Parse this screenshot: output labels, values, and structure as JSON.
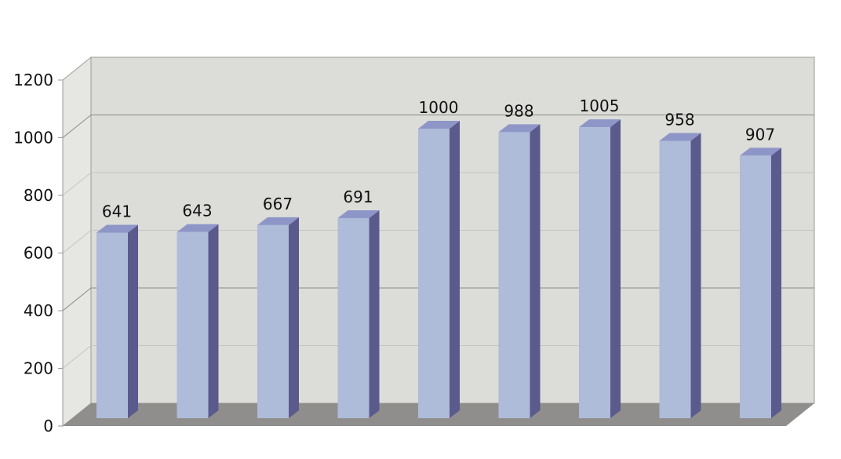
{
  "chart_data": {
    "type": "bar",
    "categories": [
      "",
      "",
      "",
      "",
      "",
      "",
      "",
      "",
      ""
    ],
    "values": [
      641,
      643,
      667,
      691,
      1000,
      988,
      1005,
      958,
      907
    ],
    "ylim": [
      0,
      1200
    ],
    "yticks": [
      "0",
      "200",
      "400",
      "600",
      "800",
      "1000",
      "1200"
    ],
    "data_labels": [
      "641",
      "643",
      "667",
      "691",
      "1000",
      "988",
      "1005",
      "958",
      "907"
    ],
    "grid": true,
    "legend": "none",
    "three_d": true,
    "colors": {
      "bar_front": "#aebbd9",
      "bar_side": "#5a5a8c",
      "bar_top": "#8e96c8",
      "back_wall": "#dcddd8",
      "side_wall": "#e6e6e2",
      "floor": "#908e8c",
      "gridline": "#c4c4c0",
      "gridline_major": "#8a8a86"
    }
  }
}
